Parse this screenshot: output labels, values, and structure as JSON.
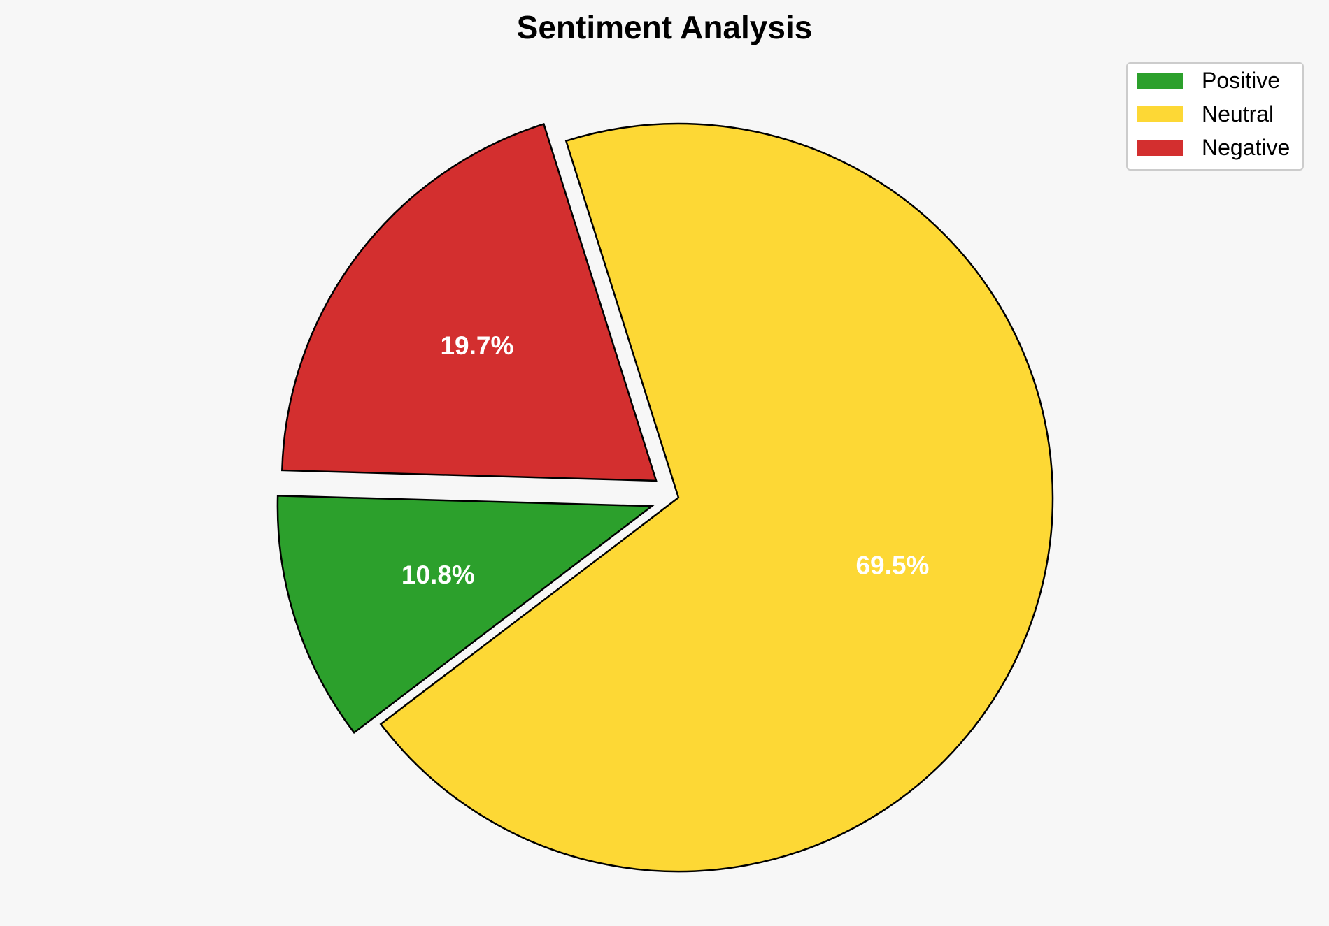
{
  "chart_data": {
    "type": "pie",
    "title": "Sentiment Analysis",
    "start_angle_deg": 178.4,
    "direction": "counterclockwise",
    "legend_position": "top-right",
    "slices": [
      {
        "name": "Positive",
        "value": 10.8,
        "label": "10.8%",
        "color": "#2ca02c",
        "exploded": true
      },
      {
        "name": "Neutral",
        "value": 69.5,
        "label": "69.5%",
        "color": "#fdd835",
        "exploded": false
      },
      {
        "name": "Negative",
        "value": 19.7,
        "label": "19.7%",
        "color": "#d32f2f",
        "exploded": true
      }
    ]
  }
}
